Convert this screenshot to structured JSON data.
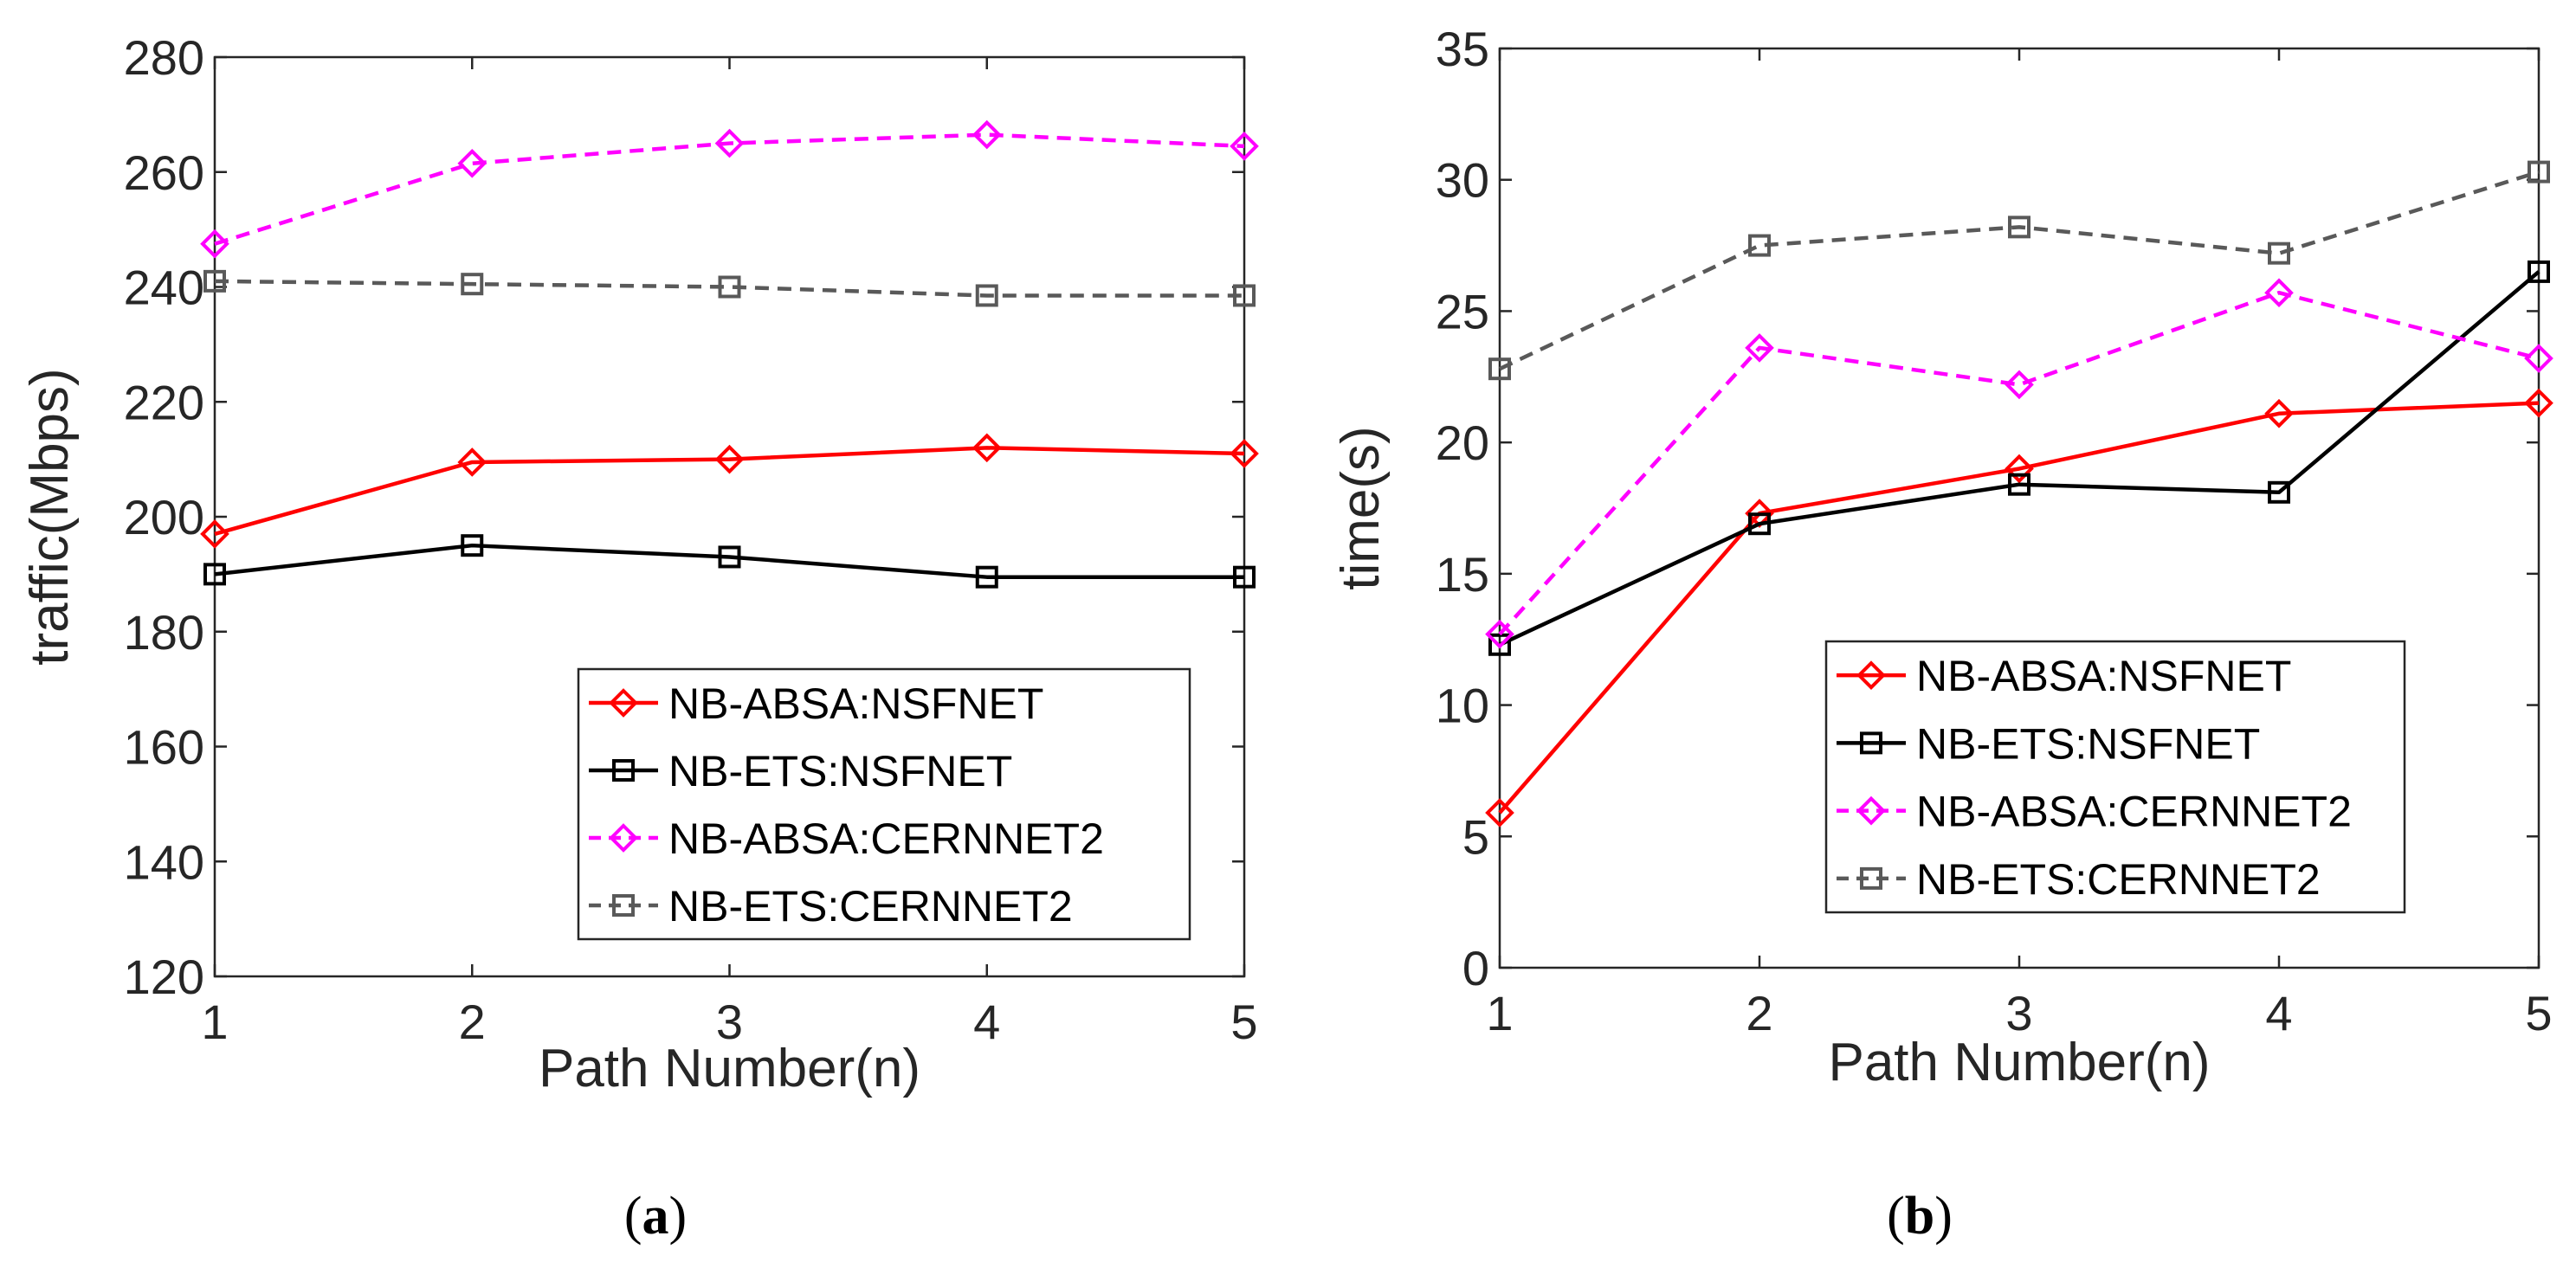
{
  "chart_data": [
    {
      "type": "line",
      "panel_id": "a",
      "caption_letter": "a",
      "caption_open": "(",
      "caption_close": ")",
      "title": "",
      "xlabel": "Path Number(n)",
      "ylabel": "traffic(Mbps)",
      "xlim": [
        1,
        5
      ],
      "ylim": [
        120,
        280
      ],
      "xticks": [
        1,
        2,
        3,
        4,
        5
      ],
      "yticks": [
        120,
        140,
        160,
        180,
        200,
        220,
        240,
        260,
        280
      ],
      "grid": false,
      "legend_position": "bottom-right",
      "x": [
        1,
        2,
        3,
        4,
        5
      ],
      "series": [
        {
          "name": "NB-ABSA:NSFNET",
          "values": [
            197,
            209.5,
            210,
            212,
            211
          ],
          "color": "#ff0000",
          "dashed": false,
          "marker": "diamond"
        },
        {
          "name": "NB-ETS:NSFNET",
          "values": [
            190,
            195,
            193,
            189.5,
            189.5
          ],
          "color": "#000000",
          "dashed": false,
          "marker": "square"
        },
        {
          "name": "NB-ABSA:CERNNET2",
          "values": [
            247.5,
            261.5,
            265,
            266.5,
            264.5
          ],
          "color": "#ff00ff",
          "dashed": true,
          "marker": "diamond"
        },
        {
          "name": "NB-ETS:CERNNET2",
          "values": [
            241,
            240.5,
            240,
            238.5,
            238.5
          ],
          "color": "#595959",
          "dashed": true,
          "marker": "square"
        }
      ]
    },
    {
      "type": "line",
      "panel_id": "b",
      "caption_letter": "b",
      "caption_open": "(",
      "caption_close": ")",
      "title": "",
      "xlabel": "Path Number(n)",
      "ylabel": "time(s)",
      "xlim": [
        1,
        5
      ],
      "ylim": [
        0,
        35
      ],
      "xticks": [
        1,
        2,
        3,
        4,
        5
      ],
      "yticks": [
        0,
        5,
        10,
        15,
        20,
        25,
        30,
        35
      ],
      "grid": false,
      "legend_position": "bottom-right",
      "x": [
        1,
        2,
        3,
        4,
        5
      ],
      "series": [
        {
          "name": "NB-ABSA:NSFNET",
          "values": [
            5.9,
            17.3,
            19.0,
            21.1,
            21.5
          ],
          "color": "#ff0000",
          "dashed": false,
          "marker": "diamond"
        },
        {
          "name": "NB-ETS:NSFNET",
          "values": [
            12.3,
            16.9,
            18.4,
            18.1,
            26.5
          ],
          "color": "#000000",
          "dashed": false,
          "marker": "square"
        },
        {
          "name": "NB-ABSA:CERNNET2",
          "values": [
            12.7,
            23.6,
            22.2,
            25.7,
            23.2
          ],
          "color": "#ff00ff",
          "dashed": true,
          "marker": "diamond"
        },
        {
          "name": "NB-ETS:CERNNET2",
          "values": [
            22.8,
            27.5,
            28.2,
            27.2,
            30.3
          ],
          "color": "#595959",
          "dashed": true,
          "marker": "square"
        }
      ]
    }
  ]
}
